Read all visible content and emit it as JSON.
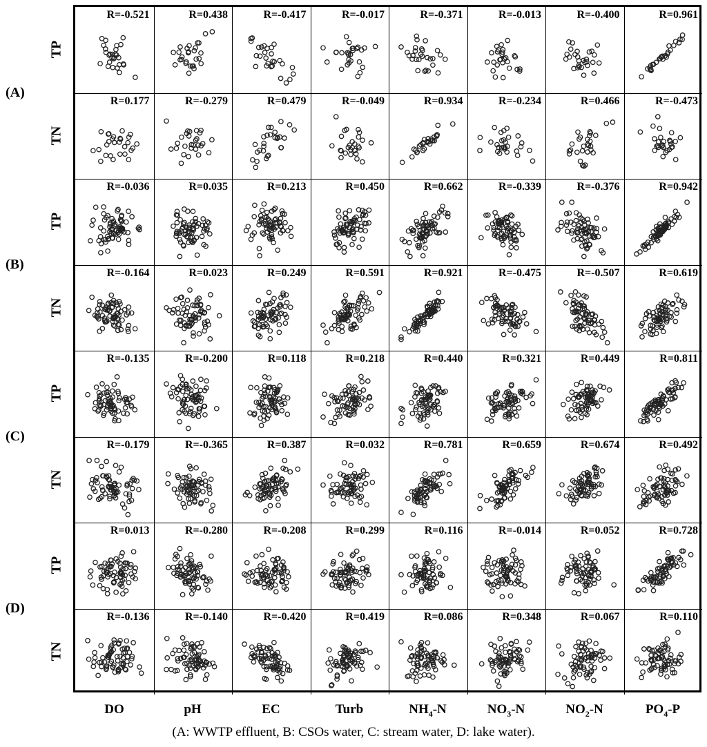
{
  "caption": "(A: WWTP effluent, B: CSOs water, C: stream water, D: lake water).",
  "chart_data": {
    "type": "scatter",
    "title": "",
    "x_variables": [
      {
        "base": "DO",
        "sub": "",
        "tail": ""
      },
      {
        "base": "pH",
        "sub": "",
        "tail": ""
      },
      {
        "base": "EC",
        "sub": "",
        "tail": ""
      },
      {
        "base": "Turb",
        "sub": "",
        "tail": ""
      },
      {
        "base": "NH",
        "sub": "4",
        "tail": "-N"
      },
      {
        "base": "NO",
        "sub": "3",
        "tail": "-N"
      },
      {
        "base": "NO",
        "sub": "2",
        "tail": "-N"
      },
      {
        "base": "PO",
        "sub": "4",
        "tail": "-P"
      }
    ],
    "groups": [
      {
        "label": "(A)",
        "rows": [
          {
            "variable": "TP",
            "r": [
              "R=-0.521",
              "R=0.438",
              "R=-0.417",
              "R=-0.017",
              "R=-0.371",
              "R=-0.013",
              "R=-0.400",
              "R=0.961"
            ]
          },
          {
            "variable": "TN",
            "r": [
              "R=0.177",
              "R=-0.279",
              "R=0.479",
              "R=-0.049",
              "R=0.934",
              "R=-0.234",
              "R=0.466",
              "R=-0.473"
            ]
          }
        ]
      },
      {
        "label": "(B)",
        "rows": [
          {
            "variable": "TP",
            "r": [
              "R=-0.036",
              "R=0.035",
              "R=0.213",
              "R=0.450",
              "R=0.662",
              "R=-0.339",
              "R=-0.376",
              "R=0.942"
            ]
          },
          {
            "variable": "TN",
            "r": [
              "R=-0.164",
              "R=0.023",
              "R=0.249",
              "R=0.591",
              "R=0.921",
              "R=-0.475",
              "R=-0.507",
              "R=0.619"
            ]
          }
        ]
      },
      {
        "label": "(C)",
        "rows": [
          {
            "variable": "TP",
            "r": [
              "R=-0.135",
              "R=-0.200",
              "R=0.118",
              "R=0.218",
              "R=0.440",
              "R=0.321",
              "R=0.449",
              "R=0.811"
            ]
          },
          {
            "variable": "TN",
            "r": [
              "R=-0.179",
              "R=-0.365",
              "R=0.387",
              "R=0.032",
              "R=0.781",
              "R=0.659",
              "R=0.674",
              "R=0.492"
            ]
          }
        ]
      },
      {
        "label": "(D)",
        "rows": [
          {
            "variable": "TP",
            "r": [
              "R=0.013",
              "R=-0.280",
              "R=-0.208",
              "R=0.299",
              "R=0.116",
              "R=-0.014",
              "R=0.052",
              "R=0.728"
            ]
          },
          {
            "variable": "TN",
            "r": [
              "R=-0.136",
              "R=-0.140",
              "R=-0.420",
              "R=0.419",
              "R=0.086",
              "R=0.348",
              "R=0.067",
              "R=0.110"
            ]
          }
        ]
      }
    ]
  }
}
